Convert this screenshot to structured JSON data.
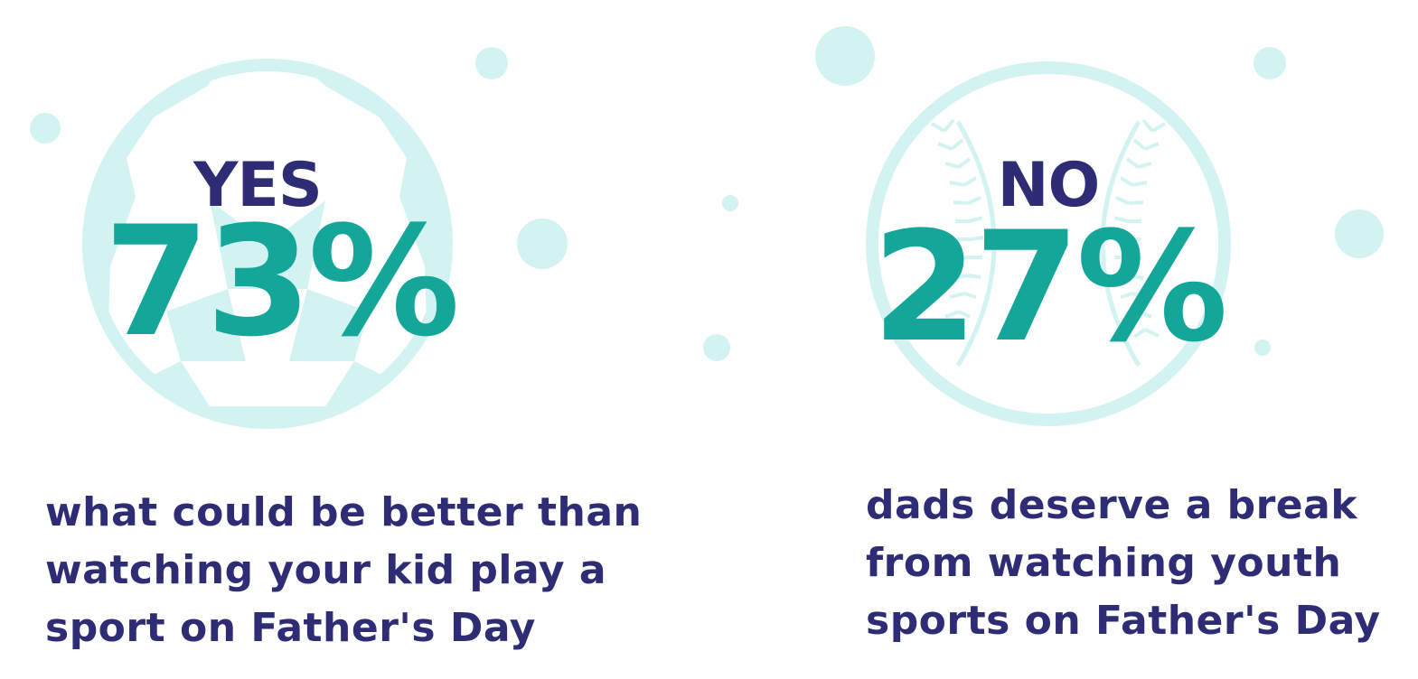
{
  "colors": {
    "navy": "#2e2c75",
    "teal": "#15a69a",
    "ball": "#d3f3f3",
    "ball_stroke": "#dff6f6",
    "background": "#ffffff"
  },
  "panels": [
    {
      "label": "YES",
      "percent": "73%",
      "icon": "soccer-ball-icon",
      "caption_lines": [
        "what could be better than",
        "watching your kid play a",
        "sport on Father's Day"
      ]
    },
    {
      "label": "NO",
      "percent": "27%",
      "icon": "baseball-icon",
      "caption_lines": [
        "dads deserve a break",
        "from watching youth",
        "sports on Father's Day"
      ]
    }
  ]
}
